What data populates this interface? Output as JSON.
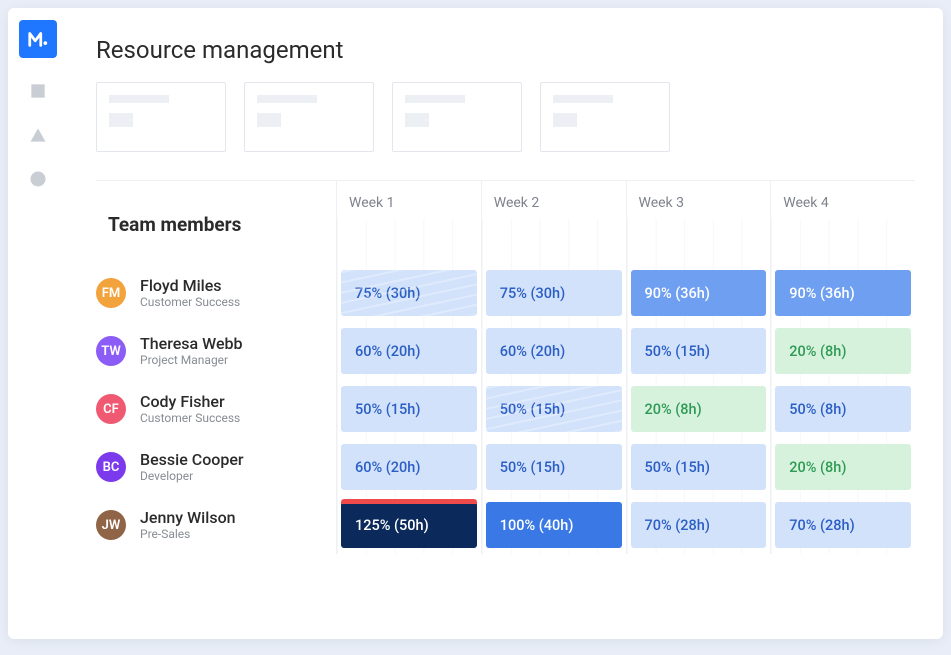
{
  "page": {
    "title": "Resource management",
    "section_title": "Team members"
  },
  "colors": {
    "accent": "#1f76ff",
    "card_border": "#e3e6ec",
    "grid_line": "#eef0f4",
    "tick_line": "#f2f4f8",
    "text_primary": "#2b2b2b",
    "text_muted": "#7d828c",
    "over_strip": "#ef4b4b"
  },
  "levels": {
    "light": {
      "bg": "#d3e2fb",
      "fg": "#2b5fc4"
    },
    "green": {
      "bg": "#d6f2dc",
      "fg": "#2e9a55"
    },
    "mid": {
      "bg": "#6f9ff1",
      "fg": "#ffffff"
    },
    "full": {
      "bg": "#3a78e6",
      "fg": "#ffffff"
    },
    "over": {
      "bg": "#0b2a5b",
      "fg": "#ffffff"
    }
  },
  "weeks": [
    "Week 1",
    "Week 2",
    "Week 3",
    "Week 4"
  ],
  "avatar_palette": [
    "#f2a33c",
    "#8b5cf6",
    "#ef5a72",
    "#7c3aed",
    "#906547"
  ],
  "members": [
    {
      "name": "Floyd Miles",
      "role": "Customer Success",
      "avatar_color": "#f2a33c",
      "cells": [
        {
          "label": "75% (30h)",
          "level": "light",
          "wave": true
        },
        {
          "label": "75% (30h)",
          "level": "light",
          "wave": false
        },
        {
          "label": "90% (36h)",
          "level": "mid",
          "wave": false
        },
        {
          "label": "90% (36h)",
          "level": "mid",
          "wave": false
        }
      ]
    },
    {
      "name": "Theresa Webb",
      "role": "Project Manager",
      "avatar_color": "#8b5cf6",
      "cells": [
        {
          "label": "60% (20h)",
          "level": "light",
          "wave": false
        },
        {
          "label": "60% (20h)",
          "level": "light",
          "wave": false
        },
        {
          "label": "50% (15h)",
          "level": "light",
          "wave": false
        },
        {
          "label": "20% (8h)",
          "level": "green",
          "wave": false
        }
      ]
    },
    {
      "name": "Cody Fisher",
      "role": "Customer Success",
      "avatar_color": "#ef5a72",
      "cells": [
        {
          "label": "50% (15h)",
          "level": "light",
          "wave": false
        },
        {
          "label": "50% (15h)",
          "level": "light",
          "wave": true
        },
        {
          "label": "20% (8h)",
          "level": "green",
          "wave": false
        },
        {
          "label": "50% (8h)",
          "level": "light",
          "wave": false
        }
      ]
    },
    {
      "name": "Bessie Cooper",
      "role": "Developer",
      "avatar_color": "#7c3aed",
      "cells": [
        {
          "label": "60% (20h)",
          "level": "light",
          "wave": false
        },
        {
          "label": "50% (15h)",
          "level": "light",
          "wave": false
        },
        {
          "label": "50% (15h)",
          "level": "light",
          "wave": false
        },
        {
          "label": "20% (8h)",
          "level": "green",
          "wave": false
        }
      ]
    },
    {
      "name": "Jenny Wilson",
      "role": "Pre-Sales",
      "avatar_color": "#906547",
      "cells": [
        {
          "label": "125% (50h)",
          "level": "over",
          "wave": false,
          "over": true
        },
        {
          "label": "100% (40h)",
          "level": "full",
          "wave": false
        },
        {
          "label": "70% (28h)",
          "level": "light",
          "wave": false
        },
        {
          "label": "70% (28h)",
          "level": "light",
          "wave": false
        }
      ]
    }
  ]
}
